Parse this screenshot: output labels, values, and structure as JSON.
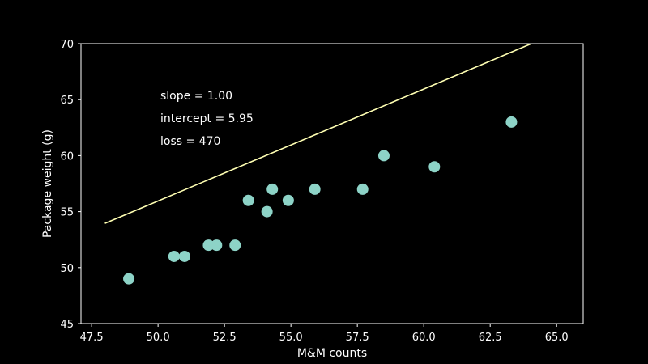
{
  "chart_data": {
    "type": "scatter",
    "xlabel": "M&M counts",
    "ylabel": "Package weight (g)",
    "xlim": [
      47.1,
      66.0
    ],
    "ylim": [
      45,
      70
    ],
    "xticks": [
      "47.5",
      "50.0",
      "52.5",
      "55.0",
      "57.5",
      "60.0",
      "62.5",
      "65.0"
    ],
    "yticks": [
      "45",
      "50",
      "55",
      "60",
      "65",
      "70"
    ],
    "grid": false,
    "colors": {
      "background": "#000000",
      "axes": "#ffffff",
      "points": "#8dd3c7",
      "line": "#ffffb3"
    },
    "points": [
      {
        "x": 48.9,
        "y": 49
      },
      {
        "x": 50.6,
        "y": 51
      },
      {
        "x": 51.0,
        "y": 51
      },
      {
        "x": 51.9,
        "y": 52
      },
      {
        "x": 52.2,
        "y": 52
      },
      {
        "x": 52.9,
        "y": 52
      },
      {
        "x": 53.4,
        "y": 56
      },
      {
        "x": 54.1,
        "y": 55
      },
      {
        "x": 54.3,
        "y": 57
      },
      {
        "x": 54.9,
        "y": 56
      },
      {
        "x": 55.9,
        "y": 57
      },
      {
        "x": 57.7,
        "y": 57
      },
      {
        "x": 58.5,
        "y": 60
      },
      {
        "x": 60.4,
        "y": 59
      },
      {
        "x": 63.3,
        "y": 63
      }
    ],
    "fit_line": {
      "x_start": 48.0,
      "x_end": 64.05,
      "slope": 1.0,
      "intercept": 5.95
    },
    "annotations": [
      "slope = 1.00",
      "intercept = 5.95",
      "loss = 470"
    ]
  }
}
